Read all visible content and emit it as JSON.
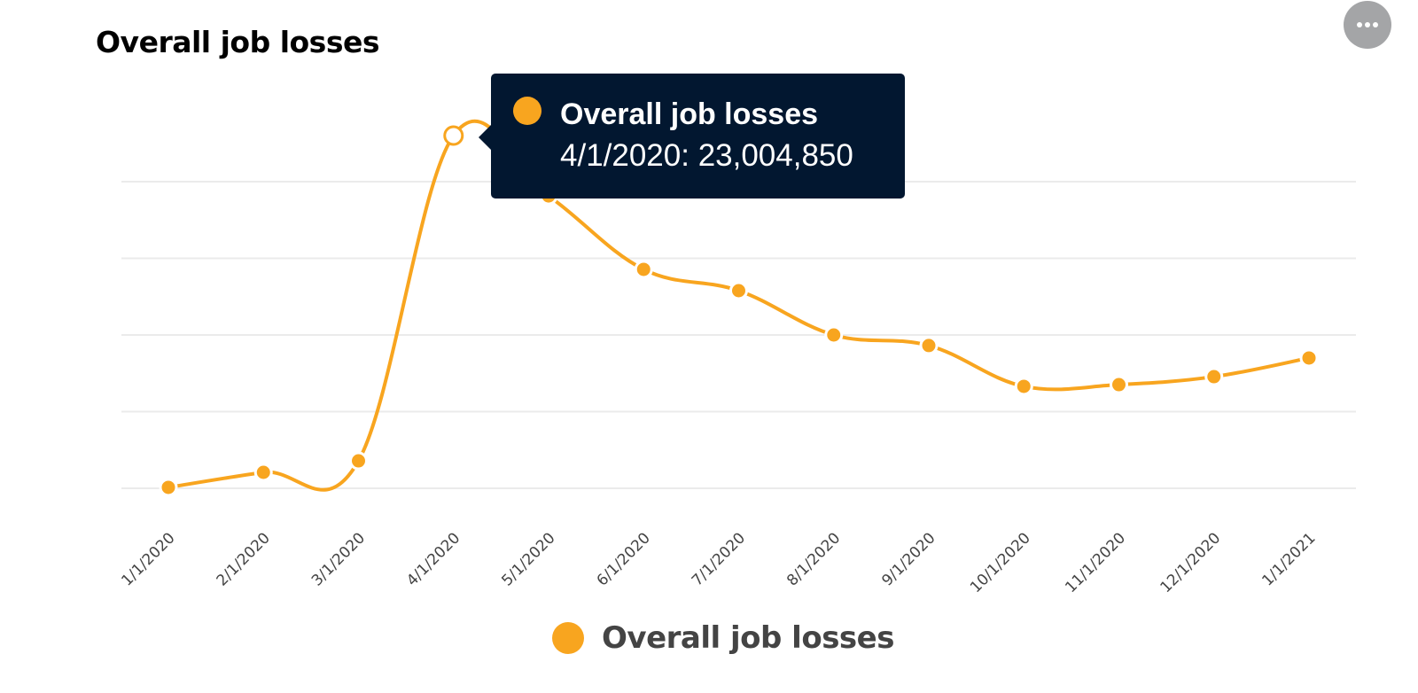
{
  "header": {
    "title": "Overall job losses",
    "menu_icon": "more-horizontal-icon"
  },
  "tooltip": {
    "series_name": "Overall job losses",
    "value_text": "4/1/2020: 23,004,850",
    "point_index": 3
  },
  "legend": {
    "items": [
      {
        "label": "Overall job losses",
        "color": "#f8a51f"
      }
    ]
  },
  "colors": {
    "series": "#f8a51f",
    "tooltip_bg": "#021730",
    "gridline": "#ebebeb",
    "axis_text": "#444444"
  },
  "chart_data": {
    "type": "line",
    "title": "Overall job losses",
    "xlabel": "",
    "ylabel": "",
    "categories": [
      "1/1/2020",
      "2/1/2020",
      "3/1/2020",
      "4/1/2020",
      "5/1/2020",
      "6/1/2020",
      "7/1/2020",
      "8/1/2020",
      "9/1/2020",
      "10/1/2020",
      "11/1/2020",
      "12/1/2020",
      "1/1/2021"
    ],
    "series": [
      {
        "name": "Overall job losses",
        "color": "#f8a51f",
        "values": [
          60000,
          1040000,
          1790000,
          23004850,
          19070000,
          14280000,
          12890000,
          10000000,
          9310000,
          6650000,
          6760000,
          7280000,
          8500000
        ]
      }
    ],
    "ylim": [
      0,
      23004850
    ],
    "gridlines": [
      0,
      5000000,
      10000000,
      15000000,
      20000000
    ],
    "y_tick_labels_visible": false,
    "grid": true,
    "smooth": true,
    "legend_position": "bottom"
  }
}
